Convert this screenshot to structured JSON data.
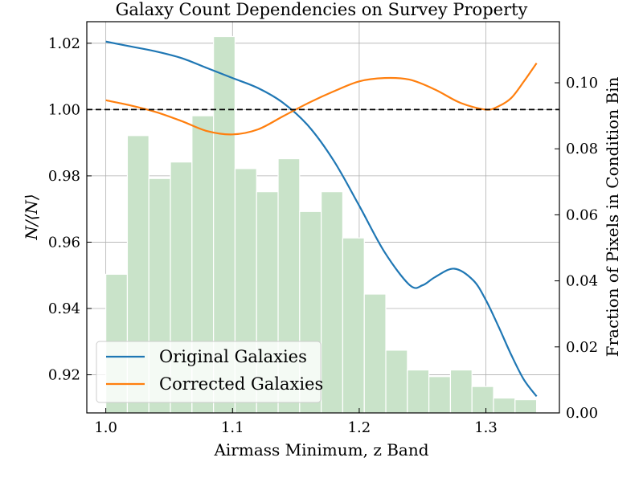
{
  "chart_data": {
    "type": "bar+line",
    "title": "Galaxy Count Dependencies on Survey Property",
    "xlabel": "Airmass Minimum, z Band",
    "ylabel_left": "N/⟨N⟩",
    "ylabel_right": "Fraction of Pixels in Condition Bin",
    "xlim": [
      0.985,
      1.358
    ],
    "ylim_left": [
      0.9085,
      1.0265
    ],
    "ylim_right": [
      0.0,
      0.1185
    ],
    "x_ticks": [
      1.0,
      1.1,
      1.2,
      1.3
    ],
    "x_tick_labels": [
      "1.0",
      "1.1",
      "1.2",
      "1.3"
    ],
    "y_left_ticks": [
      0.92,
      0.94,
      0.96,
      0.98,
      1.0,
      1.02
    ],
    "y_left_tick_labels": [
      "0.92",
      "0.94",
      "0.96",
      "0.98",
      "1.00",
      "1.02"
    ],
    "y_right_ticks": [
      0.0,
      0.02,
      0.04,
      0.06,
      0.08,
      0.1
    ],
    "y_right_tick_labels": [
      "0.00",
      "0.02",
      "0.04",
      "0.06",
      "0.08",
      "0.10"
    ],
    "grid": true,
    "reference_line": {
      "y": 1.0,
      "style": "dashed",
      "color": "#000000"
    },
    "histogram": {
      "color": "#c9e3c9",
      "bin_width": 0.017,
      "bin_starts": [
        1.0,
        1.017,
        1.034,
        1.051,
        1.068,
        1.085,
        1.102,
        1.119,
        1.136,
        1.153,
        1.17,
        1.187,
        1.204,
        1.221,
        1.238,
        1.255,
        1.272,
        1.289,
        1.306,
        1.323
      ],
      "values": [
        0.042,
        0.084,
        0.071,
        0.076,
        0.09,
        0.114,
        0.074,
        0.067,
        0.077,
        0.061,
        0.067,
        0.053,
        0.036,
        0.019,
        0.013,
        0.011,
        0.013,
        0.008,
        0.0045,
        0.004
      ]
    },
    "series": [
      {
        "name": "Original Galaxies",
        "color": "#1f77b4",
        "x": [
          1.0,
          1.02,
          1.04,
          1.06,
          1.08,
          1.1,
          1.12,
          1.14,
          1.16,
          1.18,
          1.2,
          1.22,
          1.24,
          1.25,
          1.26,
          1.275,
          1.29,
          1.3,
          1.31,
          1.32,
          1.33,
          1.34
        ],
        "y": [
          1.0205,
          1.019,
          1.0175,
          1.0155,
          1.0125,
          1.0095,
          1.0065,
          1.002,
          0.995,
          0.9845,
          0.971,
          0.957,
          0.947,
          0.947,
          0.9495,
          0.952,
          0.9485,
          0.9425,
          0.9345,
          0.926,
          0.9185,
          0.9135
        ]
      },
      {
        "name": "Corrected Galaxies",
        "color": "#ff7f0e",
        "x": [
          1.0,
          1.02,
          1.04,
          1.06,
          1.08,
          1.1,
          1.12,
          1.14,
          1.16,
          1.18,
          1.2,
          1.22,
          1.24,
          1.26,
          1.28,
          1.3,
          1.31,
          1.32,
          1.33,
          1.34
        ],
        "y": [
          1.0028,
          1.0012,
          0.9992,
          0.9965,
          0.9935,
          0.9925,
          0.994,
          0.998,
          1.002,
          1.0055,
          1.0085,
          1.0095,
          1.009,
          1.006,
          1.002,
          1.0,
          1.001,
          1.0035,
          1.0085,
          1.014
        ]
      }
    ],
    "legend": {
      "placement": "lower-left",
      "entries": [
        "Original Galaxies",
        "Corrected Galaxies"
      ]
    }
  }
}
